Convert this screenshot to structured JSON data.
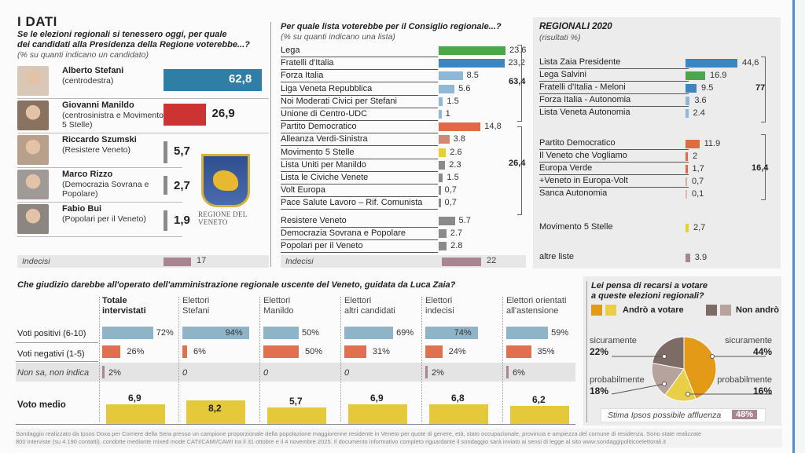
{
  "colors": {
    "stefani": "#2f7ea6",
    "manildo": "#cc3333",
    "gray": "#8a8a8a",
    "indecisi": "#a8858f",
    "green": "#4aa84a",
    "blue": "#3f85bd",
    "lightblue": "#8fb8d8",
    "orange": "#e06a48",
    "lightorange": "#cf8a73",
    "yellow": "#e8cf2e",
    "positive": "#8fb4c8",
    "negative": "#e07050",
    "avg": "#e6c93a",
    "pie_sure_go": "#e39a16",
    "pie_prob_go": "#e8cf45",
    "pie_sure_no": "#7d6b65",
    "pie_prob_no": "#b7a39d"
  },
  "panel1": {
    "heading": "I DATI",
    "question": "Se le elezioni regionali si tenessero oggi, per quale dei candidati alla Presidenza della Regione voterebbe...?",
    "question_line1": "Se le elezioni regionali si tenessero oggi, per quale",
    "question_line2": "dei candidati alla Presidenza della Regione voterebbe...?",
    "note": "(% su quanti indicano un candidato)",
    "logo_text": "REGIONE DEL VENETO",
    "undecided_label": "Indecisi",
    "undecided_value": "17"
  },
  "panel2": {
    "question": "Per quale lista voterebbe per il Consiglio regionale...?",
    "note": "(% su quanti indicano una lista)",
    "sum_right": "63,4",
    "sum_left": "26,4",
    "undecided_label": "Indecisi",
    "undecided_value": "22"
  },
  "panel3": {
    "title": "REGIONALI 2020",
    "note": "(risultati %)",
    "sum_right": "77",
    "sum_left": "16,4"
  },
  "panel4": {
    "question": "Che giudizio darebbe all'operato dell'amministrazione regionale uscente del Veneto, guidata da Luca Zaia?",
    "row_labels": [
      "Voti positivi (6-10)",
      "Voti negativi (1-5)",
      "Non sa, non indica",
      "Voto medio"
    ]
  },
  "panel5": {
    "question_line1": "Lei pensa di recarsi a votare",
    "question_line2": "a queste elezioni regionali?",
    "legend_go": "Andrò a votare",
    "legend_no": "Non andrò",
    "stima_label": "Stima Ipsos possibile affluenza",
    "stima_value": "48%"
  },
  "footer": {
    "line1": "Sondaggio realizzato da Ipsos Doxa per Corriere della Sera presso un campione proporzionale della popolazione maggiorenne residente in Veneto per quote di genere, età, stato occupazionale, provincia e ampiezza del comune di residenza. Sono state realizzate",
    "line2": "800 interviste (su 4.190 contatti), condotte mediante mixed mode CATI/CAMI/CAWI tra il 31 ottobre e il 4 novembre 2025. Il documento informativo completo riguardante il sondaggio sarà inviato ai sensi di legge al sito www.sondaggipoliticoelettorali.it"
  },
  "chart_data": [
    {
      "type": "bar",
      "title": "Se le elezioni regionali si tenessero oggi, per quale dei candidati alla Presidenza della Regione voterebbe...?",
      "subtitle": "(% su quanti indicano un candidato)",
      "categories": [
        "Alberto Stefani",
        "Giovanni Manildo",
        "Riccardo Szumski",
        "Marco Rizzo",
        "Fabio Bui"
      ],
      "parties": [
        "(centrodestra)",
        "(centrosinistra e Movimento 5 Stelle)",
        "(Resistere Veneto)",
        "(Democrazia Sovrana e Popolare)",
        "(Popolari per il Veneto)"
      ],
      "values": [
        62.8,
        26.9,
        5.7,
        2.7,
        1.9
      ],
      "labels": [
        "62,8",
        "26,9",
        "5,7",
        "2,7",
        "1,9"
      ],
      "extra": {
        "label": "Indecisi",
        "value": 17
      }
    },
    {
      "type": "bar",
      "title": "Per quale lista voterebbe per il Consiglio regionale...?",
      "subtitle": "(% su quanti indicano una lista)",
      "categories": [
        "Lega",
        "Fratelli d'Italia",
        "Forza Italia",
        "Liga Veneta Repubblica",
        "Noi Moderati Civici per Stefani",
        "Unione di Centro-UDC",
        "Partito Democratico",
        "Alleanza Verdi-Sinistra",
        "Movimento 5 Stelle",
        "Lista Uniti per Manildo",
        "Lista le Civiche Venete",
        "Volt Europa",
        "Pace Salute Lavoro – Rif. Comunista",
        "Resistere Veneto",
        "Democrazia Sovrana e Popolare",
        "Popolari per il Veneto"
      ],
      "values": [
        23.6,
        23.2,
        8.5,
        5.6,
        1.5,
        1,
        14.8,
        3.8,
        2.6,
        2.3,
        1.5,
        0.7,
        0.7,
        5.7,
        2.7,
        2.8
      ],
      "labels": [
        "23.6",
        "23,2",
        "8.5",
        "5.6",
        "1.5",
        "1",
        "14,8",
        "3.8",
        "2.6",
        "2.3",
        "1.5",
        "0,7",
        "0,7",
        "5.7",
        "2.7",
        "2.8"
      ],
      "groups": [
        {
          "label": "63,4",
          "from": 0,
          "to": 5
        },
        {
          "label": "26,4",
          "from": 6,
          "to": 12
        }
      ],
      "extra": {
        "label": "Indecisi",
        "value": 22
      }
    },
    {
      "type": "bar",
      "title": "REGIONALI 2020",
      "subtitle": "(risultati %)",
      "categories": [
        "Lista Zaia Presidente",
        "Lega Salvini",
        "Fratelli d'Italia - Meloni",
        "Forza Italia - Autonomia",
        "Lista Veneta Autonomia",
        "Partito Democratico",
        "Il Veneto che Vogliamo",
        "Europa Verde",
        "+Veneto in Europa-Volt",
        "Sanca Autonomia",
        "Movimento 5 Stelle",
        "altre liste"
      ],
      "values": [
        44.6,
        16.9,
        9.5,
        3.6,
        2.4,
        11.9,
        2,
        1.7,
        0.7,
        0.1,
        2.7,
        3.9
      ],
      "labels": [
        "44,6",
        "16.9",
        "9.5",
        "3.6",
        "2.4",
        "11.9",
        "2",
        "1,7",
        "0,7",
        "0,1",
        "2,7",
        "3.9"
      ],
      "groups": [
        {
          "label": "77",
          "from": 0,
          "to": 4
        },
        {
          "label": "16,4",
          "from": 5,
          "to": 9
        }
      ]
    },
    {
      "type": "bar",
      "title": "Che giudizio darebbe all'operato dell'amministrazione regionale uscente del Veneto, guidata da Luca Zaia?",
      "categories": [
        "Totale intervistati",
        "Elettori Stefani",
        "Elettori Manildo",
        "Elettori altri candidati",
        "Elettori indecisi",
        "Elettori orientati all'astensione"
      ],
      "category_lines": [
        [
          "Totale",
          "intervistati"
        ],
        [
          "Elettori",
          "Stefani"
        ],
        [
          "Elettori",
          "Manildo"
        ],
        [
          "Elettori",
          "altri candidati"
        ],
        [
          "Elettori",
          "indecisi"
        ],
        [
          "Elettori orientati",
          "all'astensione"
        ]
      ],
      "series": [
        {
          "name": "Voti positivi (6-10)",
          "values": [
            72,
            94,
            50,
            69,
            74,
            59
          ],
          "labels": [
            "72%",
            "94%",
            "50%",
            "69%",
            "74%",
            "59%"
          ]
        },
        {
          "name": "Voti negativi (1-5)",
          "values": [
            26,
            6,
            50,
            31,
            24,
            35
          ],
          "labels": [
            "26%",
            "6%",
            "50%",
            "31%",
            "24%",
            "35%"
          ]
        },
        {
          "name": "Non sa, non indica",
          "values": [
            2,
            0,
            0,
            0,
            2,
            6
          ],
          "labels": [
            "2%",
            "0",
            "0",
            "0",
            "2%",
            "6%"
          ]
        },
        {
          "name": "Voto medio",
          "values": [
            6.9,
            8.2,
            5.7,
            6.9,
            6.8,
            6.2
          ],
          "labels": [
            "6,9",
            "8,2",
            "5,7",
            "6,9",
            "6,8",
            "6,2"
          ]
        }
      ]
    },
    {
      "type": "pie",
      "title": "Lei pensa di recarsi a votare a queste elezioni regionali?",
      "legend": [
        "Andrò a votare",
        "Non andrò"
      ],
      "slices": [
        {
          "group": "Andrò a votare",
          "label": "sicuramente",
          "value": 44,
          "text": "44%"
        },
        {
          "group": "Andrò a votare",
          "label": "probabilmente",
          "value": 16,
          "text": "16%"
        },
        {
          "group": "Non andrò",
          "label": "probabilmente",
          "value": 18,
          "text": "18%"
        },
        {
          "group": "Non andrò",
          "label": "sicuramente",
          "value": 22,
          "text": "22%"
        }
      ],
      "annotation": "Stima Ipsos possibile affluenza 48%"
    }
  ]
}
